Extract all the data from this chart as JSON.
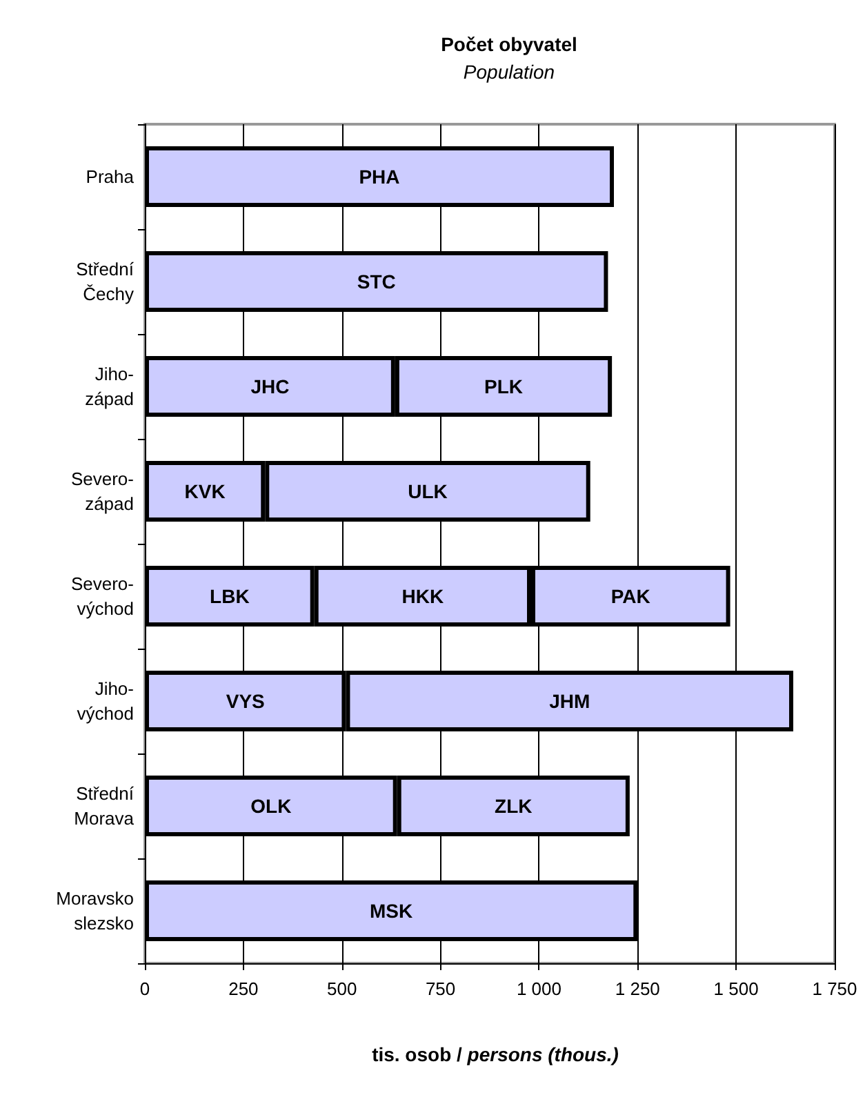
{
  "chart_data": {
    "type": "bar",
    "orientation": "horizontal",
    "stacked": true,
    "title": "Počet obyvatel",
    "subtitle": "Population",
    "xlabel": "tis. osob / persons (thous.)",
    "categories": [
      "Praha",
      "Střední Čechy",
      "Jiho-západ",
      "Severo-západ",
      "Severo-východ",
      "Jiho-východ",
      "Střední Morava",
      "Moravsko slezsko"
    ],
    "series": [
      {
        "color": "#ccccff",
        "values": [
          1190,
          1175,
          635,
          305,
          430,
          510,
          640,
          1250
        ],
        "value_labels": [
          "PHA",
          "STC",
          "JHC",
          "KVK",
          "LBK",
          "VYS",
          "OLK",
          "MSK"
        ]
      },
      {
        "color": "#ccccff",
        "values": [
          null,
          null,
          550,
          825,
          550,
          1135,
          590,
          null
        ],
        "value_labels": [
          null,
          null,
          "PLK",
          "ULK",
          "HKK",
          "JHM",
          "ZLK",
          null
        ]
      },
      {
        "color": "#ccccff",
        "values": [
          null,
          null,
          null,
          null,
          505,
          null,
          null,
          null
        ],
        "value_labels": [
          null,
          null,
          null,
          null,
          "PAK",
          null,
          null,
          null
        ]
      }
    ],
    "xlim": [
      0,
      1750
    ],
    "xticks": [
      0,
      250,
      500,
      750,
      {
        "value": 1000,
        "label": "1 000"
      },
      {
        "value": 1250,
        "label": "1 250"
      },
      {
        "value": 1500,
        "label": "1 500"
      },
      {
        "value": 1750,
        "label": "1 750"
      }
    ],
    "grid": "x"
  }
}
